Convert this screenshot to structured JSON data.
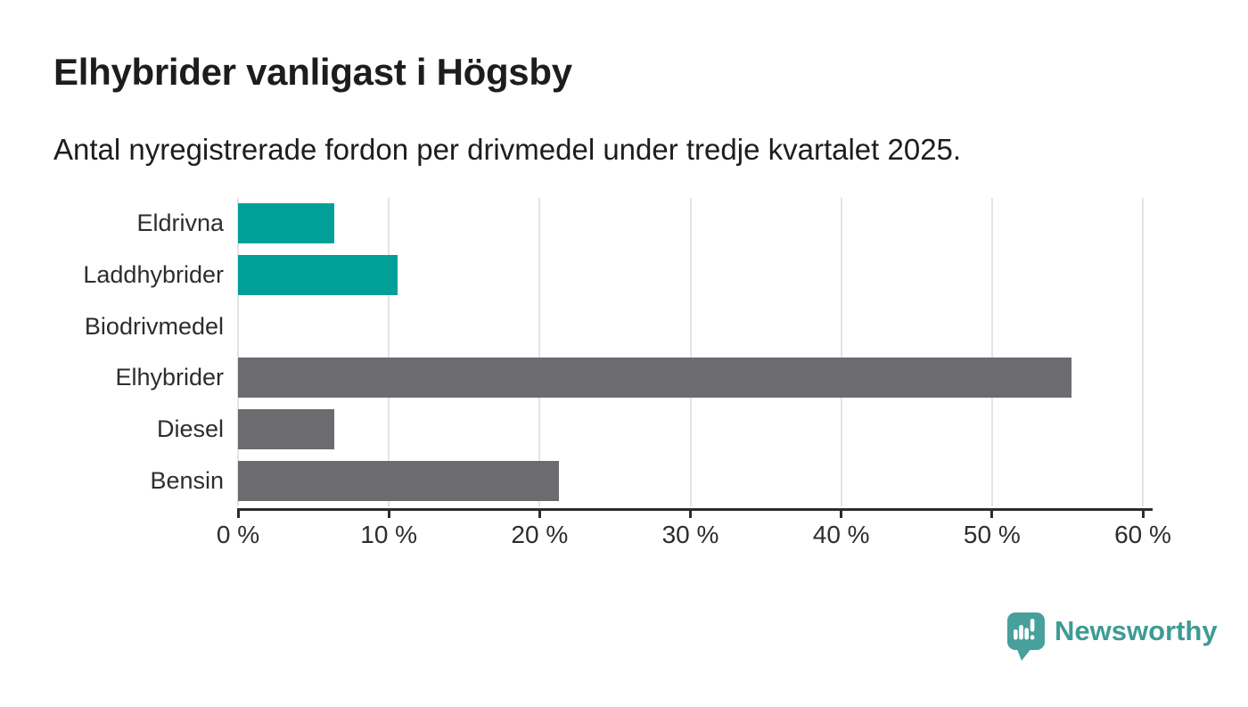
{
  "header": {
    "title": "Elhybrider vanligast i Högsby",
    "subtitle": "Antal nyregistrerade fordon per drivmedel under tredje kvartalet 2025."
  },
  "chart_data": {
    "type": "bar",
    "orientation": "horizontal",
    "title": "Elhybrider vanligast i Högsby",
    "subtitle": "Antal nyregistrerade fordon per drivmedel under tredje kvartalet 2025.",
    "categories": [
      "Eldrivna",
      "Laddhybrider",
      "Biodrivmedel",
      "Elhybrider",
      "Diesel",
      "Bensin"
    ],
    "values": [
      6.4,
      10.6,
      0,
      55.3,
      6.4,
      21.3
    ],
    "unit": "%",
    "xlabel": "",
    "ylabel": "",
    "xlim": [
      0,
      60
    ],
    "x_ticks": [
      0,
      10,
      20,
      30,
      40,
      50,
      60
    ],
    "x_tick_labels": [
      "0 %",
      "10 %",
      "20 %",
      "30 %",
      "40 %",
      "50 %",
      "60 %"
    ],
    "grid": "vertical",
    "legend": "none",
    "bar_colors": [
      "#00a099",
      "#00a099",
      "#00a099",
      "#6b6b70",
      "#6b6b70",
      "#6b6b70"
    ],
    "highlight_color": "#00a099",
    "base_color": "#6b6b70",
    "gridline_color": "#e4e4e6",
    "axis_color": "#2d2d2d"
  },
  "footer": {
    "brand": "Newsworthy",
    "logo_icon": "speech-bubble-bar-chart-icon",
    "brand_color": "#3e9b95",
    "icon_color": "#47a09b"
  }
}
